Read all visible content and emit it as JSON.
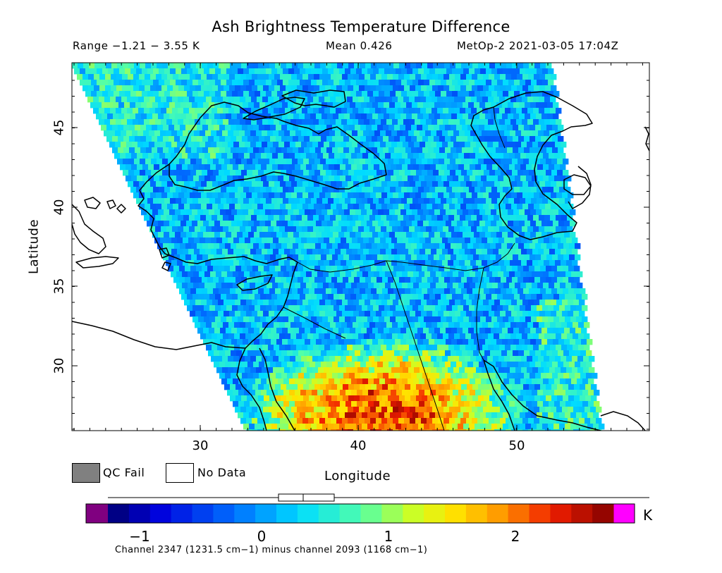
{
  "title": "Ash Brightness Temperature Difference",
  "stats": {
    "range": "Range −1.21 − 3.55 K",
    "mean": "Mean 0.426",
    "satellite_time": "MetOp-2 2021-03-05 17:04Z"
  },
  "axes": {
    "xlabel": "Longitude",
    "ylabel": "Latitude",
    "xticks": [
      "30",
      "40",
      "50"
    ],
    "yticks": [
      "45",
      "40",
      "35",
      "30"
    ],
    "lon_range": [
      22.2,
      58.5
    ],
    "lat_range": [
      25.8,
      49.0
    ]
  },
  "legend": {
    "qc_fail": "QC Fail",
    "no_data": "No Data",
    "qc_fail_color": "#808080",
    "no_data_color": "#ffffff"
  },
  "colorbar": {
    "ticks": [
      "−1",
      "0",
      "1",
      "2"
    ],
    "unit": "K",
    "caption": "Channel 2347 (1231.5 cm−1) minus channel 2093 (1168 cm−1)",
    "range": [
      -1.3,
      2.8
    ],
    "under_color": "#800080",
    "over_color": "#ff00ff",
    "box_whisker": {
      "min": -1.21,
      "q1": 0.1,
      "median": 0.33,
      "q3": 0.57,
      "max": 3.55
    }
  }
}
